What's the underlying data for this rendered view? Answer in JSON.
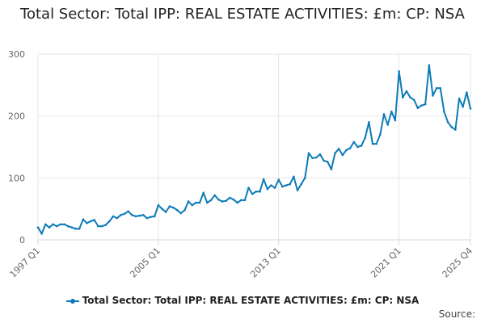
{
  "chart_data": {
    "type": "line",
    "title": "Total Sector: Total IPP: REAL ESTATE ACTIVITIES: £m: CP: NSA",
    "xlabel": "",
    "ylabel": "",
    "ylim": [
      0,
      300
    ],
    "yticks": [
      0,
      100,
      200,
      300
    ],
    "x_ticks": [
      "1997 Q1",
      "2005 Q1",
      "2013 Q1",
      "2021 Q1",
      "2025 Q4"
    ],
    "x_range": [
      "1997 Q1",
      "2025 Q4"
    ],
    "grid": true,
    "legend_position": "bottom",
    "series": [
      {
        "name": "Total Sector: Total IPP: REAL ESTATE ACTIVITIES: £m: CP: NSA",
        "color": "#0e7bb8",
        "start": "1997 Q1",
        "values": [
          20,
          10,
          25,
          20,
          25,
          22,
          25,
          25,
          22,
          20,
          18,
          18,
          33,
          27,
          30,
          32,
          22,
          22,
          24,
          30,
          38,
          35,
          40,
          42,
          46,
          40,
          38,
          39,
          40,
          35,
          37,
          38,
          56,
          50,
          45,
          54,
          52,
          48,
          43,
          48,
          62,
          56,
          60,
          60,
          76,
          60,
          64,
          72,
          65,
          62,
          63,
          68,
          65,
          60,
          64,
          64,
          84,
          74,
          78,
          78,
          98,
          82,
          88,
          84,
          97,
          86,
          88,
          90,
          102,
          80,
          90,
          100,
          140,
          132,
          133,
          138,
          128,
          126,
          114,
          140,
          147,
          137,
          145,
          148,
          158,
          150,
          152,
          165,
          190,
          155,
          155,
          170,
          203,
          186,
          207,
          193,
          272,
          230,
          240,
          230,
          226,
          213,
          217,
          219,
          282,
          233,
          245,
          245,
          207,
          190,
          182,
          178,
          228,
          215,
          238,
          212
        ]
      }
    ]
  },
  "legend": {
    "label": "Total Sector: Total IPP: REAL ESTATE ACTIVITIES: £m: CP: NSA"
  },
  "source": {
    "label": "Source:"
  }
}
